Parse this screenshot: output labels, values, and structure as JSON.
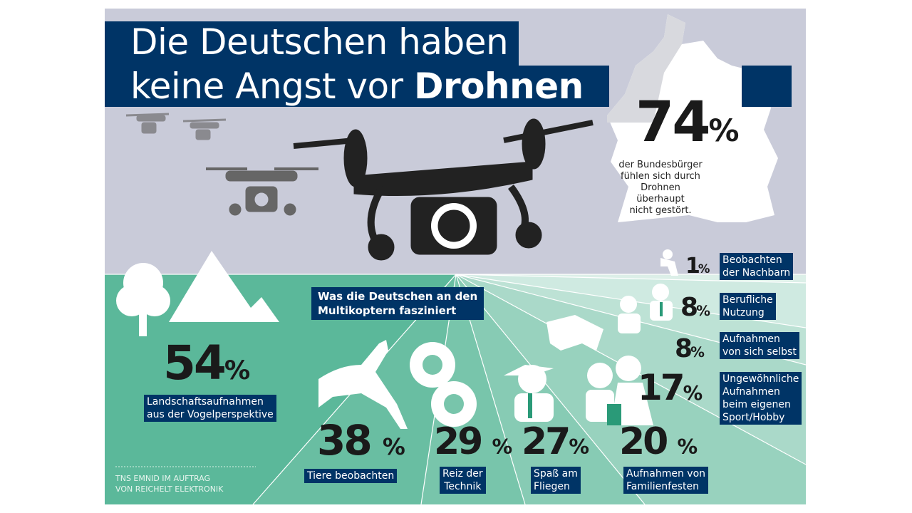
{
  "title": {
    "line1": "Die Deutschen haben",
    "line2_regular": "keine Angst vor ",
    "line2_bold": "Drohnen"
  },
  "headline_stat": {
    "value": "74",
    "unit": "%",
    "text": [
      "der Bundesbürger",
      "fühlen sich durch",
      "Drohnen",
      "überhaupt",
      "nicht gestört."
    ]
  },
  "subtitle": [
    "Was die Deutschen an den",
    "Multikoptern fasziniert"
  ],
  "items": [
    {
      "value": "54",
      "unit": "%",
      "label": [
        "Landschaftsaufnahmen",
        "aus der Vogelperspektive"
      ],
      "icon": "tree-mountain-icon"
    },
    {
      "value": "38",
      "unit": "%",
      "label": [
        "Tiere beobachten"
      ],
      "icon": "deer-icon"
    },
    {
      "value": "29",
      "unit": "%",
      "label": [
        "Reiz der",
        "Technik"
      ],
      "icon": "gears-icon"
    },
    {
      "value": "27",
      "unit": "%",
      "label": [
        "Spaß am",
        "Fliegen"
      ],
      "icon": "pilot-icon"
    },
    {
      "value": "20",
      "unit": "%",
      "label": [
        "Aufnahmen von",
        "Familienfesten"
      ],
      "icon": "wedding-couple-icon"
    },
    {
      "value": "17",
      "unit": "%",
      "label": [
        "Ungewöhnliche",
        "Aufnahmen",
        "beim eigenen",
        "Sport/Hobby"
      ],
      "icon": "horse-rider-icon"
    },
    {
      "value": "8",
      "unit": "%",
      "label": [
        "Aufnahmen",
        "von sich selbst"
      ],
      "icon": "selfie-icon"
    },
    {
      "value": "8",
      "unit": "%",
      "label": [
        "Berufliche",
        "Nutzung"
      ],
      "icon": "businessman-icon"
    },
    {
      "value": "1",
      "unit": "%",
      "label": [
        "Beobachten",
        "der Nachbarn"
      ],
      "icon": "peeping-person-icon"
    }
  ],
  "source": [
    "TNS EMNID IM AUFTRAG",
    "VON REICHELT ELEKTRONIK"
  ],
  "colors": {
    "navy": "#003466",
    "top_bg": "#c9cbd9",
    "green": "#5bb89a",
    "tie": "#2a9a78"
  }
}
